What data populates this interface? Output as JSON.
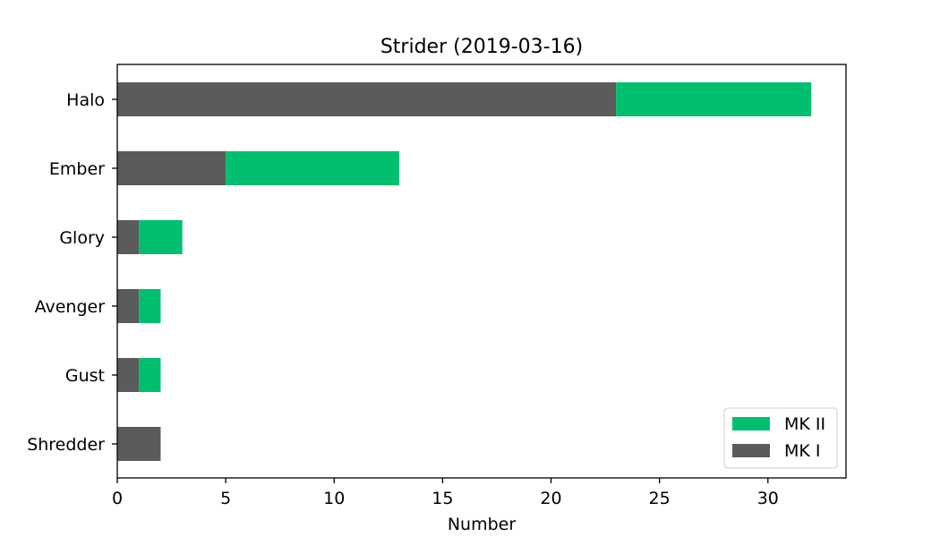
{
  "chart_data": {
    "type": "bar",
    "orientation": "horizontal",
    "stacked": true,
    "title": "Strider (2019-03-16)",
    "xlabel": "Number",
    "ylabel": "",
    "categories": [
      "Shredder",
      "Gust",
      "Avenger",
      "Glory",
      "Ember",
      "Halo"
    ],
    "series": [
      {
        "name": "MK I",
        "color": "#5a5c5b",
        "values": [
          2,
          1,
          1,
          1,
          5,
          23
        ]
      },
      {
        "name": "MK II",
        "color": "#00bf6f",
        "values": [
          0,
          1,
          1,
          2,
          8,
          9
        ]
      }
    ],
    "xlim": [
      0,
      33.6
    ],
    "xticks": [
      0,
      5,
      10,
      15,
      20,
      25,
      30
    ],
    "legend": {
      "placement": "lower-right",
      "order": [
        "MK II",
        "MK I"
      ]
    },
    "grid": false
  }
}
